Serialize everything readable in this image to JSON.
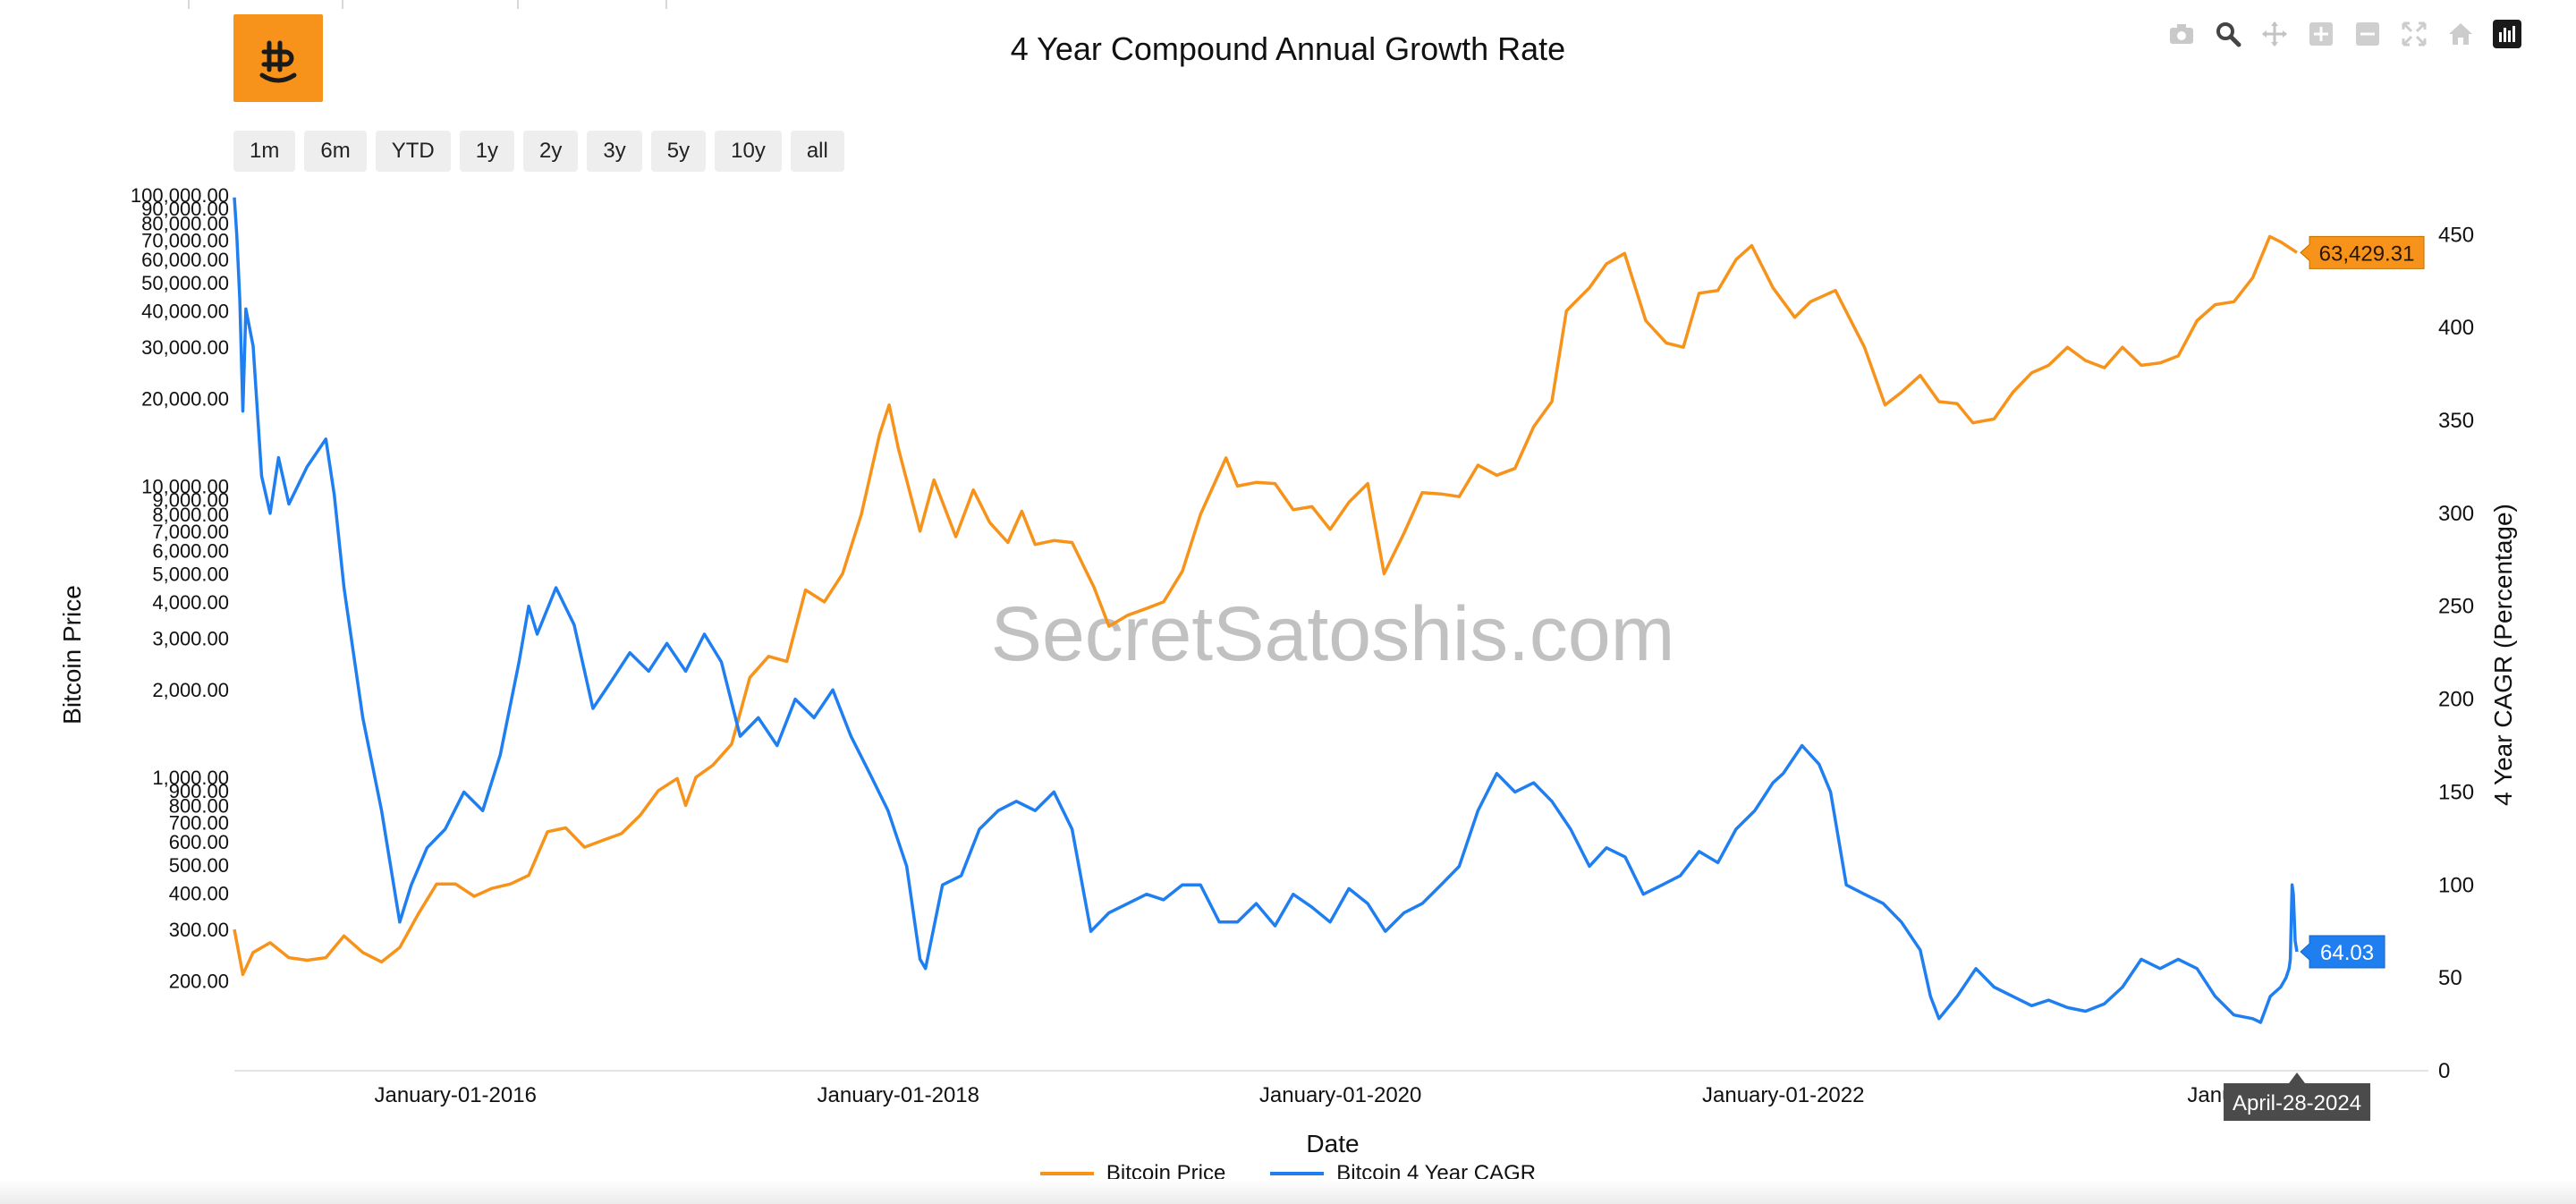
{
  "title": "4 Year Compound Annual Growth Rate",
  "watermark": "SecretSatoshis.com",
  "modebar": {
    "icons": [
      "camera-icon",
      "zoom-icon",
      "pan-icon",
      "zoom-in-icon",
      "zoom-out-icon",
      "autoscale-icon",
      "home-icon",
      "plotly-logo-icon"
    ]
  },
  "range_buttons": [
    "1m",
    "6m",
    "YTD",
    "1y",
    "2y",
    "3y",
    "5y",
    "10y",
    "all"
  ],
  "colors": {
    "price": "#f7931a",
    "cagr": "#1f7ff0",
    "logo_bg": "#f7931a"
  },
  "chart_data": {
    "type": "line",
    "title": "4 Year Compound Annual Growth Rate",
    "xlabel": "Date",
    "x_ticks": [
      "January-01-2016",
      "January-01-2018",
      "January-01-2020",
      "January-01-2022",
      "January"
    ],
    "y_left": {
      "label": "Bitcoin Price",
      "scale": "log",
      "range": [
        150,
        100000
      ],
      "ticks": [
        "200.00",
        "300.00",
        "400.00",
        "500.00",
        "600.00",
        "700.00",
        "800.00",
        "900.00",
        "1,000.00",
        "2,000.00",
        "3,000.00",
        "4,000.00",
        "5,000.00",
        "6,000.00",
        "7,000.00",
        "8,000.00",
        "9,000.00",
        "10,000.00",
        "20,000.00",
        "30,000.00",
        "40,000.00",
        "50,000.00",
        "60,000.00",
        "70,000.00",
        "80,000.00",
        "90,000.00",
        "100,000.00"
      ]
    },
    "y_right": {
      "label": "4 Year CAGR (Percentage)",
      "scale": "linear",
      "range": [
        0,
        480
      ],
      "ticks": [
        "0",
        "50",
        "100",
        "150",
        "200",
        "250",
        "300",
        "350",
        "400",
        "450"
      ]
    },
    "x_range": [
      "2015-01-01",
      "2024-12-01"
    ],
    "series": [
      {
        "name": "Bitcoin Price",
        "axis": "left",
        "last_label": "63,429.31",
        "points": [
          [
            "2015-01-01",
            300
          ],
          [
            "2015-01-15",
            210
          ],
          [
            "2015-02-01",
            250
          ],
          [
            "2015-03-01",
            270
          ],
          [
            "2015-04-01",
            240
          ],
          [
            "2015-05-01",
            235
          ],
          [
            "2015-06-01",
            240
          ],
          [
            "2015-07-01",
            285
          ],
          [
            "2015-08-01",
            250
          ],
          [
            "2015-09-01",
            232
          ],
          [
            "2015-10-01",
            260
          ],
          [
            "2015-11-01",
            340
          ],
          [
            "2015-12-01",
            430
          ],
          [
            "2016-01-01",
            430
          ],
          [
            "2016-02-01",
            390
          ],
          [
            "2016-03-01",
            415
          ],
          [
            "2016-04-01",
            430
          ],
          [
            "2016-05-01",
            460
          ],
          [
            "2016-06-01",
            650
          ],
          [
            "2016-07-01",
            670
          ],
          [
            "2016-08-01",
            575
          ],
          [
            "2016-09-01",
            608
          ],
          [
            "2016-10-01",
            640
          ],
          [
            "2016-11-01",
            740
          ],
          [
            "2016-12-01",
            900
          ],
          [
            "2017-01-01",
            990
          ],
          [
            "2017-01-15",
            800
          ],
          [
            "2017-02-01",
            1000
          ],
          [
            "2017-03-01",
            1100
          ],
          [
            "2017-04-01",
            1300
          ],
          [
            "2017-05-01",
            2200
          ],
          [
            "2017-06-01",
            2600
          ],
          [
            "2017-07-01",
            2500
          ],
          [
            "2017-08-01",
            4400
          ],
          [
            "2017-09-01",
            4000
          ],
          [
            "2017-10-01",
            5000
          ],
          [
            "2017-11-01",
            8000
          ],
          [
            "2017-12-01",
            15000
          ],
          [
            "2017-12-17",
            19000
          ],
          [
            "2018-01-01",
            13500
          ],
          [
            "2018-02-06",
            7000
          ],
          [
            "2018-03-01",
            10500
          ],
          [
            "2018-04-06",
            6700
          ],
          [
            "2018-05-05",
            9700
          ],
          [
            "2018-06-01",
            7500
          ],
          [
            "2018-07-01",
            6400
          ],
          [
            "2018-07-24",
            8200
          ],
          [
            "2018-08-15",
            6300
          ],
          [
            "2018-09-15",
            6500
          ],
          [
            "2018-10-15",
            6400
          ],
          [
            "2018-11-20",
            4500
          ],
          [
            "2018-12-15",
            3300
          ],
          [
            "2019-01-15",
            3600
          ],
          [
            "2019-02-15",
            3800
          ],
          [
            "2019-03-15",
            4000
          ],
          [
            "2019-04-15",
            5100
          ],
          [
            "2019-05-15",
            8000
          ],
          [
            "2019-06-26",
            12500
          ],
          [
            "2019-07-15",
            10000
          ],
          [
            "2019-08-15",
            10300
          ],
          [
            "2019-09-15",
            10200
          ],
          [
            "2019-10-15",
            8300
          ],
          [
            "2019-11-15",
            8500
          ],
          [
            "2019-12-15",
            7100
          ],
          [
            "2020-01-15",
            8800
          ],
          [
            "2020-02-15",
            10200
          ],
          [
            "2020-03-13",
            5000
          ],
          [
            "2020-04-15",
            6900
          ],
          [
            "2020-05-15",
            9500
          ],
          [
            "2020-06-15",
            9400
          ],
          [
            "2020-07-15",
            9200
          ],
          [
            "2020-08-15",
            11800
          ],
          [
            "2020-09-15",
            10900
          ],
          [
            "2020-10-15",
            11500
          ],
          [
            "2020-11-15",
            16000
          ],
          [
            "2020-12-15",
            19500
          ],
          [
            "2021-01-08",
            40000
          ],
          [
            "2021-02-15",
            48000
          ],
          [
            "2021-03-15",
            58000
          ],
          [
            "2021-04-14",
            63000
          ],
          [
            "2021-05-19",
            37000
          ],
          [
            "2021-06-22",
            31000
          ],
          [
            "2021-07-20",
            30000
          ],
          [
            "2021-08-15",
            46000
          ],
          [
            "2021-09-15",
            47000
          ],
          [
            "2021-10-15",
            60000
          ],
          [
            "2021-11-10",
            67000
          ],
          [
            "2021-12-15",
            48000
          ],
          [
            "2022-01-20",
            38000
          ],
          [
            "2022-02-15",
            43000
          ],
          [
            "2022-03-28",
            47000
          ],
          [
            "2022-05-15",
            30000
          ],
          [
            "2022-06-18",
            19000
          ],
          [
            "2022-07-15",
            21000
          ],
          [
            "2022-08-15",
            24000
          ],
          [
            "2022-09-15",
            19500
          ],
          [
            "2022-10-15",
            19200
          ],
          [
            "2022-11-10",
            16500
          ],
          [
            "2022-12-15",
            17000
          ],
          [
            "2023-01-15",
            21000
          ],
          [
            "2023-02-15",
            24500
          ],
          [
            "2023-03-15",
            26000
          ],
          [
            "2023-04-15",
            30000
          ],
          [
            "2023-05-15",
            27000
          ],
          [
            "2023-06-15",
            25500
          ],
          [
            "2023-07-15",
            30000
          ],
          [
            "2023-08-15",
            26000
          ],
          [
            "2023-09-15",
            26500
          ],
          [
            "2023-10-15",
            28000
          ],
          [
            "2023-11-15",
            37000
          ],
          [
            "2023-12-15",
            42000
          ],
          [
            "2024-01-15",
            43000
          ],
          [
            "2024-02-15",
            52000
          ],
          [
            "2024-03-14",
            72000
          ],
          [
            "2024-04-01",
            69000
          ],
          [
            "2024-04-28",
            63429.31
          ]
        ]
      },
      {
        "name": "Bitcoin 4 Year CAGR",
        "axis": "right",
        "last_label": "64.03",
        "points": [
          [
            "2015-01-01",
            470
          ],
          [
            "2015-01-05",
            450
          ],
          [
            "2015-01-10",
            415
          ],
          [
            "2015-01-15",
            355
          ],
          [
            "2015-01-20",
            410
          ],
          [
            "2015-02-01",
            390
          ],
          [
            "2015-02-15",
            320
          ],
          [
            "2015-03-01",
            300
          ],
          [
            "2015-03-15",
            330
          ],
          [
            "2015-04-01",
            305
          ],
          [
            "2015-05-01",
            325
          ],
          [
            "2015-06-01",
            340
          ],
          [
            "2015-06-15",
            310
          ],
          [
            "2015-07-01",
            260
          ],
          [
            "2015-08-01",
            190
          ],
          [
            "2015-09-01",
            140
          ],
          [
            "2015-10-01",
            80
          ],
          [
            "2015-10-20",
            100
          ],
          [
            "2015-11-15",
            120
          ],
          [
            "2015-12-15",
            130
          ],
          [
            "2016-01-15",
            150
          ],
          [
            "2016-02-15",
            140
          ],
          [
            "2016-03-15",
            170
          ],
          [
            "2016-04-15",
            220
          ],
          [
            "2016-05-01",
            250
          ],
          [
            "2016-05-15",
            235
          ],
          [
            "2016-06-15",
            260
          ],
          [
            "2016-07-15",
            240
          ],
          [
            "2016-08-15",
            195
          ],
          [
            "2016-09-15",
            210
          ],
          [
            "2016-10-15",
            225
          ],
          [
            "2016-11-15",
            215
          ],
          [
            "2016-12-15",
            230
          ],
          [
            "2017-01-15",
            215
          ],
          [
            "2017-02-15",
            235
          ],
          [
            "2017-03-15",
            220
          ],
          [
            "2017-04-15",
            180
          ],
          [
            "2017-05-15",
            190
          ],
          [
            "2017-06-15",
            175
          ],
          [
            "2017-07-15",
            200
          ],
          [
            "2017-08-15",
            190
          ],
          [
            "2017-09-15",
            205
          ],
          [
            "2017-10-15",
            180
          ],
          [
            "2017-11-15",
            160
          ],
          [
            "2017-12-15",
            140
          ],
          [
            "2018-01-15",
            110
          ],
          [
            "2018-02-06",
            60
          ],
          [
            "2018-02-15",
            55
          ],
          [
            "2018-03-15",
            100
          ],
          [
            "2018-04-15",
            105
          ],
          [
            "2018-05-15",
            130
          ],
          [
            "2018-06-15",
            140
          ],
          [
            "2018-07-15",
            145
          ],
          [
            "2018-08-15",
            140
          ],
          [
            "2018-09-15",
            150
          ],
          [
            "2018-10-15",
            130
          ],
          [
            "2018-11-15",
            75
          ],
          [
            "2018-12-15",
            85
          ],
          [
            "2019-01-15",
            90
          ],
          [
            "2019-02-15",
            95
          ],
          [
            "2019-03-15",
            92
          ],
          [
            "2019-04-15",
            100
          ],
          [
            "2019-05-15",
            100
          ],
          [
            "2019-06-15",
            80
          ],
          [
            "2019-07-15",
            80
          ],
          [
            "2019-08-15",
            90
          ],
          [
            "2019-09-15",
            78
          ],
          [
            "2019-10-15",
            95
          ],
          [
            "2019-11-15",
            88
          ],
          [
            "2019-12-15",
            80
          ],
          [
            "2020-01-15",
            98
          ],
          [
            "2020-02-15",
            90
          ],
          [
            "2020-03-15",
            75
          ],
          [
            "2020-04-15",
            85
          ],
          [
            "2020-05-15",
            90
          ],
          [
            "2020-06-15",
            100
          ],
          [
            "2020-07-15",
            110
          ],
          [
            "2020-08-15",
            140
          ],
          [
            "2020-09-15",
            160
          ],
          [
            "2020-10-15",
            150
          ],
          [
            "2020-11-15",
            155
          ],
          [
            "2020-12-15",
            145
          ],
          [
            "2021-01-15",
            130
          ],
          [
            "2021-02-15",
            110
          ],
          [
            "2021-03-15",
            120
          ],
          [
            "2021-04-15",
            115
          ],
          [
            "2021-05-15",
            95
          ],
          [
            "2021-06-15",
            100
          ],
          [
            "2021-07-15",
            105
          ],
          [
            "2021-08-15",
            118
          ],
          [
            "2021-09-15",
            112
          ],
          [
            "2021-10-15",
            130
          ],
          [
            "2021-11-15",
            140
          ],
          [
            "2021-12-15",
            155
          ],
          [
            "2022-01-01",
            160
          ],
          [
            "2022-02-01",
            175
          ],
          [
            "2022-03-01",
            165
          ],
          [
            "2022-03-20",
            150
          ],
          [
            "2022-04-15",
            100
          ],
          [
            "2022-05-15",
            95
          ],
          [
            "2022-06-15",
            90
          ],
          [
            "2022-07-15",
            80
          ],
          [
            "2022-08-15",
            65
          ],
          [
            "2022-09-01",
            40
          ],
          [
            "2022-09-15",
            28
          ],
          [
            "2022-10-15",
            40
          ],
          [
            "2022-11-15",
            55
          ],
          [
            "2022-12-15",
            45
          ],
          [
            "2023-01-15",
            40
          ],
          [
            "2023-02-15",
            35
          ],
          [
            "2023-03-15",
            38
          ],
          [
            "2023-04-15",
            34
          ],
          [
            "2023-05-15",
            32
          ],
          [
            "2023-06-15",
            36
          ],
          [
            "2023-07-15",
            45
          ],
          [
            "2023-08-15",
            60
          ],
          [
            "2023-09-15",
            55
          ],
          [
            "2023-10-15",
            60
          ],
          [
            "2023-11-15",
            55
          ],
          [
            "2023-12-15",
            40
          ],
          [
            "2024-01-15",
            30
          ],
          [
            "2024-02-15",
            28
          ],
          [
            "2024-02-28",
            26
          ],
          [
            "2024-03-15",
            40
          ],
          [
            "2024-04-01",
            45
          ],
          [
            "2024-04-10",
            50
          ],
          [
            "2024-04-15",
            55
          ],
          [
            "2024-04-17",
            60
          ],
          [
            "2024-04-20",
            100
          ],
          [
            "2024-04-22",
            95
          ],
          [
            "2024-04-25",
            70
          ],
          [
            "2024-04-28",
            64.03
          ]
        ]
      }
    ],
    "hover_x_label": "April-28-2024",
    "legend": [
      "Bitcoin Price",
      "Bitcoin 4 Year CAGR"
    ],
    "legend_position": "bottom-center",
    "grid": false
  }
}
